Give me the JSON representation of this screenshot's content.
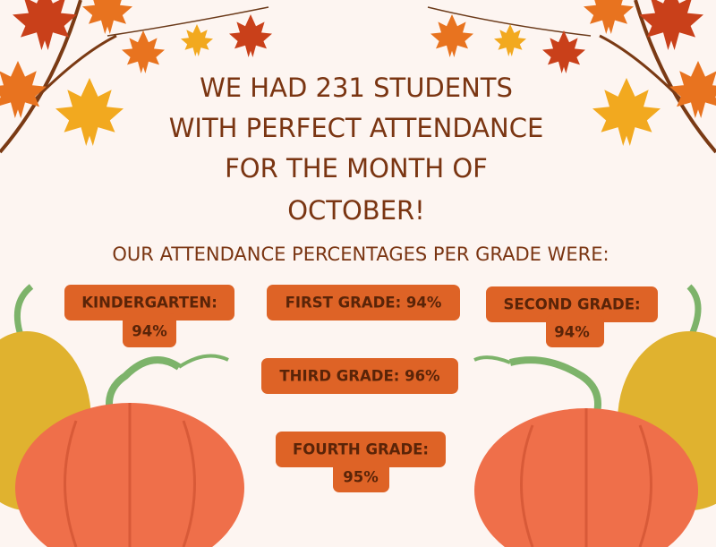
{
  "headline": {
    "lines": [
      "WE HAD 231 STUDENTS",
      "WITH PERFECT ATTENDANCE",
      "FOR THE MONTH OF",
      "OCTOBER!"
    ]
  },
  "subheading": "OUR ATTENDANCE PERCENTAGES PER GRADE WERE:",
  "badges": [
    {
      "lines": [
        "KINDERGARTEN:",
        "94%"
      ]
    },
    {
      "lines": [
        "FIRST GRADE: 94%"
      ]
    },
    {
      "lines": [
        "SECOND GRADE:",
        "94%"
      ]
    },
    {
      "lines": [
        "THIRD GRADE: 96%"
      ]
    },
    {
      "lines": [
        "FOURTH GRADE:",
        "95%"
      ]
    }
  ]
}
